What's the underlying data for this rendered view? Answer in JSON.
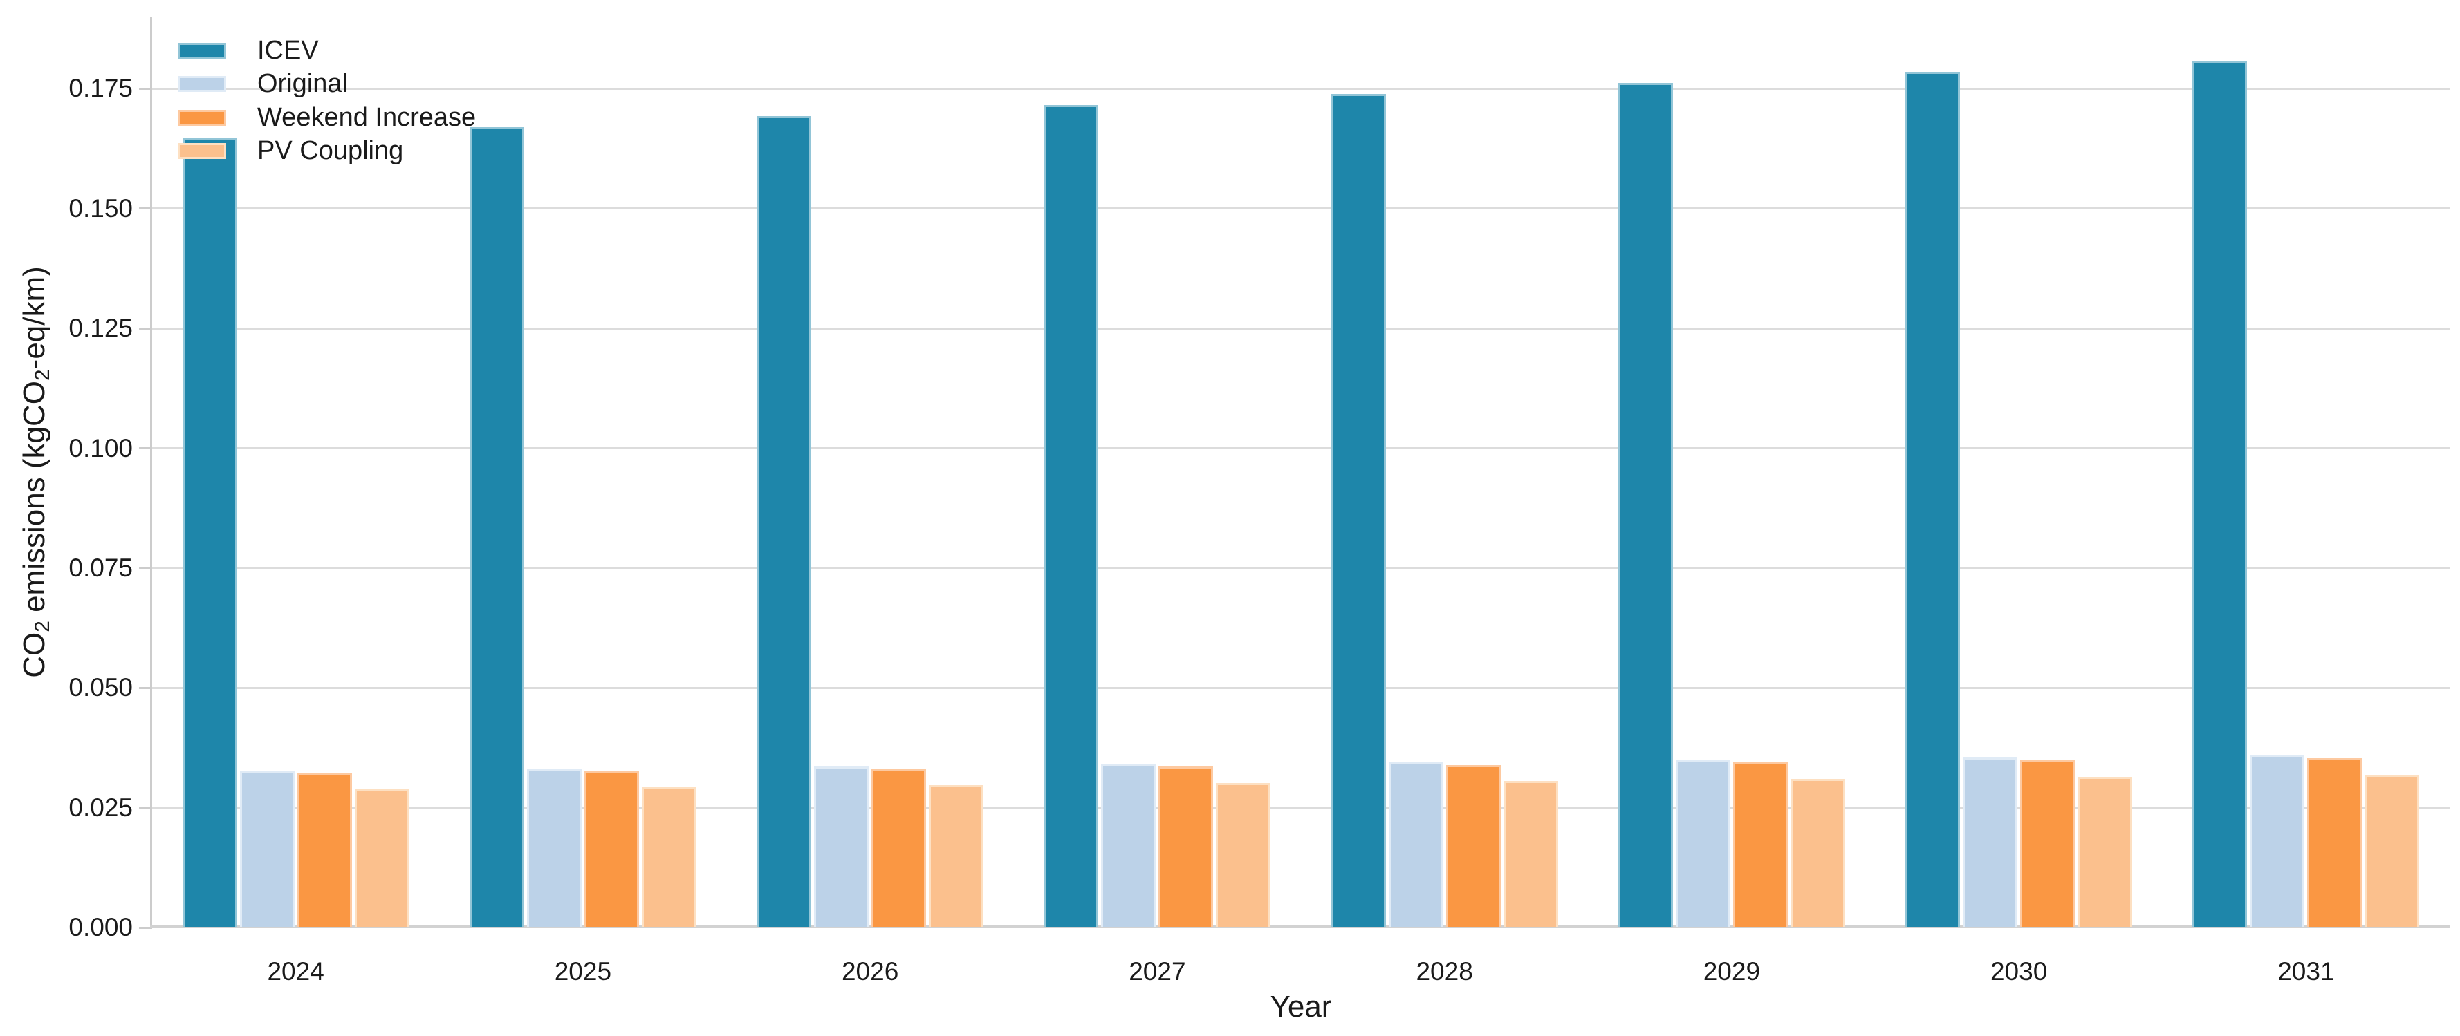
{
  "chart_data": {
    "type": "bar",
    "title": "",
    "xlabel": "Year",
    "ylabel": "CO2 emissions (kgCO2-eq/km)",
    "ylabel_parts": [
      {
        "text": "CO"
      },
      {
        "text": "2",
        "sub": true
      },
      {
        "text": " emissions (kgCO"
      },
      {
        "text": "2",
        "sub": true
      },
      {
        "text": "-eq/km)"
      }
    ],
    "categories": [
      "2024",
      "2025",
      "2026",
      "2027",
      "2028",
      "2029",
      "2030",
      "2031"
    ],
    "series": [
      {
        "name": "ICEV",
        "color": "#1e86aa",
        "edge_color": "#92c5d7",
        "values": [
          0.1645,
          0.1668,
          0.1691,
          0.1714,
          0.1738,
          0.1761,
          0.1784,
          0.1807
        ]
      },
      {
        "name": "Original",
        "color": "#bcd2e8",
        "edge_color": "#e0ebf6",
        "values": [
          0.0325,
          0.033,
          0.0334,
          0.0339,
          0.0343,
          0.0348,
          0.0353,
          0.0358
        ]
      },
      {
        "name": "Weekend Increase",
        "color": "#fa9743",
        "edge_color": "#fdc9a0",
        "values": [
          0.032,
          0.0325,
          0.0329,
          0.0334,
          0.0338,
          0.0343,
          0.0347,
          0.0352
        ]
      },
      {
        "name": "PV Coupling",
        "color": "#fbc08d",
        "edge_color": "#fde0c2",
        "values": [
          0.0287,
          0.0291,
          0.0296,
          0.03,
          0.0304,
          0.0308,
          0.0313,
          0.0317
        ]
      }
    ],
    "y_ticks": [
      {
        "label": "0.000",
        "value": 0.0
      },
      {
        "label": "0.025",
        "value": 0.025
      },
      {
        "label": "0.050",
        "value": 0.05
      },
      {
        "label": "0.075",
        "value": 0.075
      },
      {
        "label": "0.100",
        "value": 0.1
      },
      {
        "label": "0.125",
        "value": 0.125
      },
      {
        "label": "0.150",
        "value": 0.15
      },
      {
        "label": "0.175",
        "value": 0.175
      }
    ],
    "ylim": [
      0,
      0.19
    ],
    "grid": true,
    "legend_position": "upper left",
    "legend_frame": false
  }
}
